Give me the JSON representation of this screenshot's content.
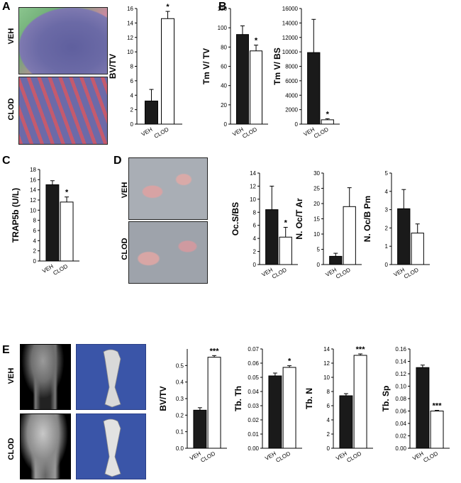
{
  "panels": {
    "A": {
      "letter": "A",
      "rows": [
        "VEH",
        "CLOD"
      ]
    },
    "B": {
      "letter": "B"
    },
    "C": {
      "letter": "C"
    },
    "D": {
      "letter": "D",
      "rows": [
        "VEH",
        "CLOD"
      ]
    },
    "E": {
      "letter": "E",
      "rows": [
        "VEH",
        "CLOD"
      ]
    }
  },
  "chart_data": [
    {
      "id": "A",
      "type": "bar",
      "ylabel": "BV/TV",
      "ylim": [
        0,
        16
      ],
      "yticks": [
        0,
        2,
        4,
        6,
        8,
        10,
        12,
        14,
        16
      ],
      "categories": [
        "VEH",
        "CLOD"
      ],
      "values": [
        3.2,
        14.6
      ],
      "errors": [
        1.6,
        1.0
      ],
      "sig": [
        "",
        "*"
      ]
    },
    {
      "id": "B1",
      "type": "bar",
      "ylabel": "Tm V/ TV",
      "ylim": [
        0,
        120
      ],
      "yticks": [
        0,
        20,
        40,
        60,
        80,
        100,
        120
      ],
      "categories": [
        "VEH",
        "CLOD"
      ],
      "values": [
        93,
        76
      ],
      "errors": [
        9,
        6
      ],
      "sig": [
        "",
        "*"
      ]
    },
    {
      "id": "B2",
      "type": "bar",
      "ylabel": "Tm V/ BS",
      "ylim": [
        0,
        16000
      ],
      "yticks": [
        0,
        2000,
        4000,
        6000,
        8000,
        10000,
        12000,
        14000,
        16000
      ],
      "categories": [
        "VEH",
        "CLOD"
      ],
      "values": [
        9900,
        600
      ],
      "errors": [
        4600,
        150
      ],
      "sig": [
        "",
        "*"
      ]
    },
    {
      "id": "C",
      "type": "bar",
      "ylabel": "TRAP5b (U/L)",
      "ylim": [
        0,
        18
      ],
      "yticks": [
        0,
        2,
        4,
        6,
        8,
        10,
        12,
        14,
        16,
        18
      ],
      "categories": [
        "VEH",
        "CLOD"
      ],
      "values": [
        15,
        11.6
      ],
      "errors": [
        0.8,
        1.0
      ],
      "sig": [
        "",
        "*"
      ]
    },
    {
      "id": "D1",
      "type": "bar",
      "ylabel": "Oc.S/BS",
      "ylim": [
        0,
        14
      ],
      "yticks": [
        0,
        2,
        4,
        6,
        8,
        10,
        12,
        14
      ],
      "categories": [
        "VEH",
        "CLOD"
      ],
      "values": [
        8.4,
        4.2
      ],
      "errors": [
        3.6,
        1.5
      ],
      "sig": [
        "",
        "*"
      ]
    },
    {
      "id": "D2",
      "type": "bar",
      "ylabel": "N. Oc/T Ar",
      "ylim": [
        0,
        30
      ],
      "yticks": [
        0,
        5,
        10,
        15,
        20,
        25,
        30
      ],
      "categories": [
        "VEH",
        "CLOD"
      ],
      "values": [
        2.7,
        19
      ],
      "errors": [
        1.0,
        6.2
      ],
      "sig": [
        "",
        ""
      ]
    },
    {
      "id": "D3",
      "type": "bar",
      "ylabel": "N. Oc/B Pm",
      "ylim": [
        0,
        5
      ],
      "yticks": [
        0,
        1,
        2,
        3,
        4,
        5
      ],
      "categories": [
        "VEH",
        "CLOD"
      ],
      "values": [
        3.05,
        1.72
      ],
      "errors": [
        1.05,
        0.5
      ],
      "sig": [
        "",
        ""
      ]
    },
    {
      "id": "E1",
      "type": "bar",
      "ylabel": "BV/TV",
      "ylim": [
        0,
        0.6
      ],
      "yticks": [
        0,
        0.1,
        0.2,
        0.3,
        0.4,
        0.5
      ],
      "categories": [
        "VEH",
        "CLOD"
      ],
      "values": [
        0.23,
        0.55
      ],
      "errors": [
        0.015,
        0.01
      ],
      "sig": [
        "",
        "***"
      ]
    },
    {
      "id": "E2",
      "type": "bar",
      "ylabel": "Tb. Th",
      "ylim": [
        0,
        0.07
      ],
      "yticks": [
        0,
        0.01,
        0.02,
        0.03,
        0.04,
        0.05,
        0.06,
        0.07
      ],
      "categories": [
        "VEH",
        "CLOD"
      ],
      "values": [
        0.051,
        0.057
      ],
      "errors": [
        0.002,
        0.0012
      ],
      "sig": [
        "",
        "*"
      ]
    },
    {
      "id": "E3",
      "type": "bar",
      "ylabel": "Tb. N",
      "ylim": [
        0,
        14
      ],
      "yticks": [
        0,
        2,
        4,
        6,
        8,
        10,
        12,
        14
      ],
      "categories": [
        "VEH",
        "CLOD"
      ],
      "values": [
        7.4,
        13.1
      ],
      "errors": [
        0.3,
        0.2
      ],
      "sig": [
        "",
        "***"
      ]
    },
    {
      "id": "E4",
      "type": "bar",
      "ylabel": "Tb. Sp",
      "ylim": [
        0,
        0.16
      ],
      "yticks": [
        0,
        0.02,
        0.04,
        0.06,
        0.08,
        0.1,
        0.12,
        0.14,
        0.16
      ],
      "categories": [
        "VEH",
        "CLOD"
      ],
      "values": [
        0.13,
        0.06
      ],
      "errors": [
        0.004,
        0.001
      ],
      "sig": [
        "",
        "***"
      ]
    }
  ]
}
